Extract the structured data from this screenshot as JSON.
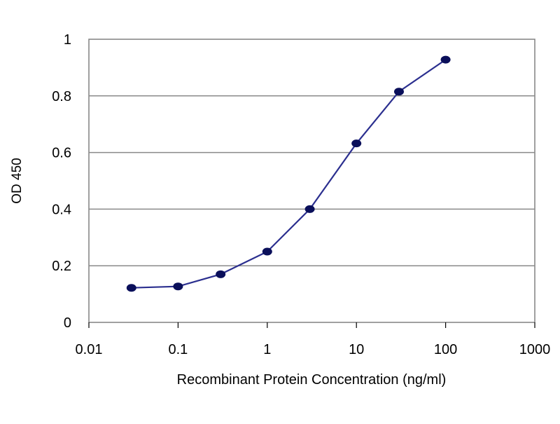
{
  "chart_data": {
    "type": "line",
    "xscale": "log",
    "xlabel": "Recombinant Protein Concentration (ng/ml)",
    "ylabel": "OD 450",
    "xlim": [
      0.01,
      1000
    ],
    "ylim": [
      0,
      1
    ],
    "xticks": [
      0.01,
      0.1,
      1,
      10,
      100,
      1000
    ],
    "xtick_labels": [
      "0.01",
      "0.1",
      "1",
      "10",
      "100",
      "1000"
    ],
    "yticks": [
      0,
      0.2,
      0.4,
      0.6,
      0.8,
      1
    ],
    "ytick_labels": [
      "0",
      "0.2",
      "0.4",
      "0.6",
      "0.8",
      "1"
    ],
    "grid": "horizontal",
    "series": [
      {
        "color": "#2b2f8f",
        "marker_color": "#0a0f5a",
        "x": [
          0.03,
          0.1,
          0.3,
          1,
          3,
          10,
          30,
          100
        ],
        "y": [
          0.122,
          0.127,
          0.17,
          0.25,
          0.4,
          0.632,
          0.815,
          0.928
        ]
      }
    ]
  }
}
